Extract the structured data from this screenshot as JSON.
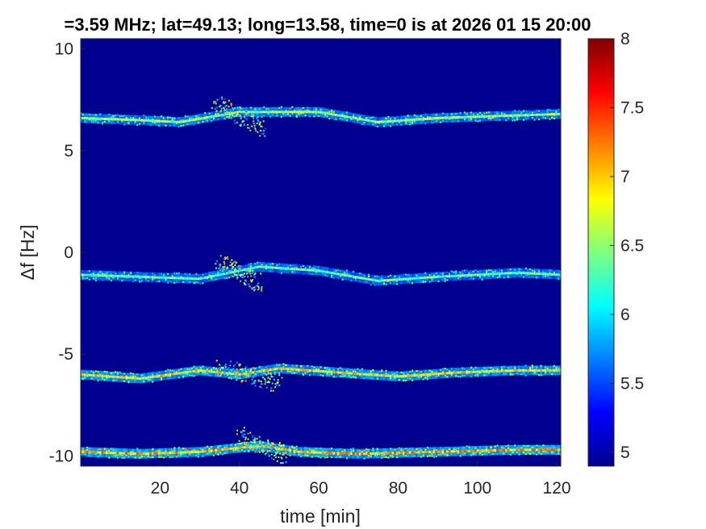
{
  "chart_data": {
    "type": "heatmap",
    "title": "=3.59 MHz;  lat=49.13; long=13.58, time=0 is at 2026 01 15 20:00",
    "xlabel": "time [min]",
    "ylabel": "Δf [Hz]",
    "xlim": [
      0,
      121
    ],
    "ylim": [
      -10.5,
      10.5
    ],
    "x_ticks": [
      20,
      40,
      60,
      80,
      100,
      120
    ],
    "y_ticks": [
      -10,
      -5,
      0,
      5,
      10
    ],
    "colorbar": {
      "range": [
        4.9,
        8
      ],
      "ticks": [
        5,
        5.5,
        6,
        6.5,
        7,
        7.5,
        8
      ],
      "colormap": "jet"
    },
    "background_value": 4.9,
    "series": [
      {
        "points": [
          [
            0,
            6.6
          ],
          [
            15,
            6.5
          ],
          [
            25,
            6.4
          ],
          [
            40,
            6.9
          ],
          [
            60,
            6.9
          ],
          [
            75,
            6.4
          ],
          [
            90,
            6.6
          ],
          [
            105,
            6.7
          ],
          [
            121,
            6.8
          ]
        ],
        "peak": 6.7
      },
      {
        "points": [
          [
            0,
            -1.1
          ],
          [
            15,
            -1.2
          ],
          [
            30,
            -1.3
          ],
          [
            45,
            -0.7
          ],
          [
            60,
            -0.9
          ],
          [
            75,
            -1.4
          ],
          [
            90,
            -1.2
          ],
          [
            110,
            -1.0
          ],
          [
            121,
            -1.1
          ]
        ],
        "peak": 6.5
      },
      {
        "points": [
          [
            0,
            -6.0
          ],
          [
            15,
            -6.2
          ],
          [
            30,
            -5.8
          ],
          [
            40,
            -6.0
          ],
          [
            50,
            -5.7
          ],
          [
            65,
            -5.9
          ],
          [
            80,
            -6.1
          ],
          [
            95,
            -5.9
          ],
          [
            110,
            -5.8
          ],
          [
            121,
            -5.8
          ]
        ],
        "peak": 7.0
      },
      {
        "points": [
          [
            0,
            -9.8
          ],
          [
            15,
            -9.9
          ],
          [
            30,
            -9.8
          ],
          [
            45,
            -9.5
          ],
          [
            55,
            -9.8
          ],
          [
            70,
            -9.9
          ],
          [
            90,
            -9.8
          ],
          [
            110,
            -9.7
          ],
          [
            121,
            -9.7
          ]
        ],
        "peak": 7.2
      }
    ],
    "cross_streaks": [
      {
        "from": [
          34,
          7.3
        ],
        "to": [
          46,
          6.1
        ]
      },
      {
        "from": [
          35,
          -0.5
        ],
        "to": [
          45,
          -1.5
        ]
      },
      {
        "from": [
          35,
          -5.6
        ],
        "to": [
          50,
          -6.5
        ]
      },
      {
        "from": [
          40,
          -9.0
        ],
        "to": [
          52,
          -10.0
        ]
      }
    ]
  }
}
